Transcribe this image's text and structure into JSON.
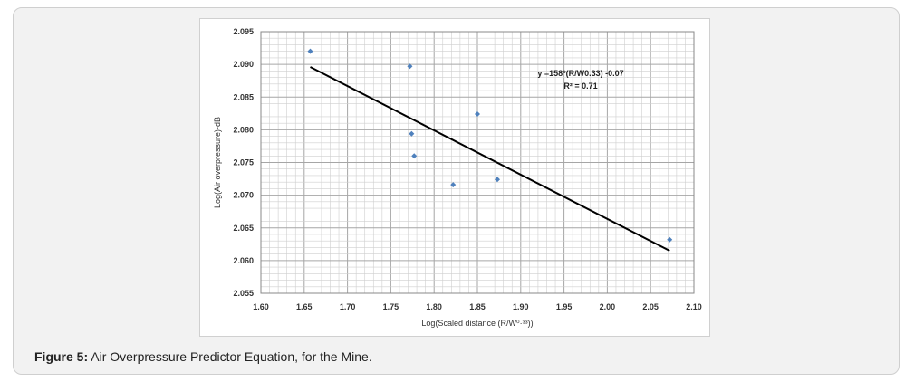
{
  "caption": {
    "label": "Figure 5:",
    "text": " Air Overpressure Predictor Equation, for the Mine."
  },
  "chart_data": {
    "type": "scatter",
    "title": "",
    "xlabel": "Log(Scaled distance (R/W⁰·³³))",
    "ylabel": "Log(Air overpressure)-dB",
    "xlim": [
      1.6,
      2.1
    ],
    "ylim": [
      2.055,
      2.095
    ],
    "xticks": [
      "1.60",
      "1.65",
      "1.70",
      "1.75",
      "1.80",
      "1.85",
      "1.90",
      "1.95",
      "2.00",
      "2.05",
      "2.10"
    ],
    "yticks": [
      "2.055",
      "2.060",
      "2.065",
      "2.070",
      "2.075",
      "2.080",
      "2.085",
      "2.090",
      "2.095"
    ],
    "grid": true,
    "points": [
      [
        1.657,
        2.092
      ],
      [
        1.772,
        2.0897
      ],
      [
        1.774,
        2.0794
      ],
      [
        1.777,
        2.076
      ],
      [
        1.822,
        2.0716
      ],
      [
        1.85,
        2.0824
      ],
      [
        1.873,
        2.0724
      ],
      [
        2.072,
        2.0632
      ]
    ],
    "trendline": {
      "x": [
        1.657,
        2.072
      ],
      "y": [
        2.0896,
        2.0615
      ]
    },
    "annotation": {
      "equation": "y =158*(R/W0.33) -0.07",
      "r2": "R² = 0.71"
    },
    "colors": {
      "points": "#4f81bd",
      "trendline": "#000000",
      "grid": "#a6a6a6"
    }
  }
}
